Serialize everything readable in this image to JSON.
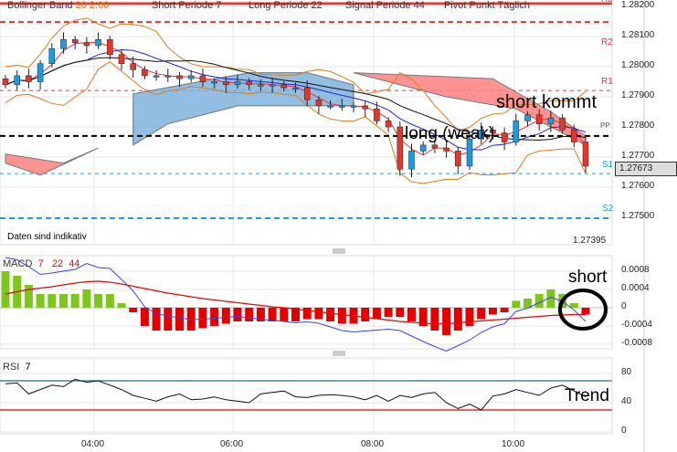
{
  "header": {
    "bb_label": "Bollinger Band",
    "bb_params": "20  2.00",
    "short": "Short Periode  7",
    "long": "Long Periode  22",
    "signal": "Signal Periode  44",
    "pivot": "Pivot Punkt  Täglich"
  },
  "disclaimer": "Daten sind indikativ",
  "low_value": "1.27395",
  "current_price": "1.27673",
  "pivot_labels": {
    "r3": "R3",
    "r2": "R2",
    "r1": "R1",
    "pp": "PP",
    "s1": "S1",
    "s2": "S2"
  },
  "annotations": {
    "long": "long (weak)",
    "short_kommt": "short kommt",
    "short": "short",
    "trend": "Trend"
  },
  "colors": {
    "up": "#1e9be0",
    "down": "#e8352b",
    "macd_pos": "#7cc61d",
    "macd_neg": "#e40000",
    "kumo_blue": "#7fb3dc",
    "kumo_red": "#ff8080"
  },
  "chart_data": [
    {
      "type": "candlestick",
      "title": "Price",
      "y_ticks": [
        "1.28200",
        "1.28100",
        "1.28000",
        "1.27900",
        "1.27800",
        "1.27700",
        "1.27600",
        "1.27500"
      ],
      "ylim": [
        1.2739,
        1.2821
      ],
      "pivots": {
        "R3": 1.2821,
        "R2": 1.28148,
        "R1": 1.27921,
        "PP": 1.2777,
        "S1": 1.27645,
        "S2": 1.27497
      },
      "closes": [
        1.2794,
        1.2797,
        1.2795,
        1.2801,
        1.2806,
        1.2809,
        1.2808,
        1.2807,
        1.2809,
        1.2804,
        1.2801,
        1.2799,
        1.2797,
        1.2797,
        1.2797,
        1.2796,
        1.2797,
        1.2795,
        1.2795,
        1.2794,
        1.2795,
        1.2794,
        1.2794,
        1.2794,
        1.2793,
        1.2793,
        1.2789,
        1.2787,
        1.2787,
        1.2787,
        1.2787,
        1.2786,
        1.2782,
        1.278,
        1.2766,
        1.2772,
        1.2774,
        1.2773,
        1.2772,
        1.2767,
        1.2776,
        1.2779,
        1.2778,
        1.2775,
        1.2782,
        1.2784,
        1.2781,
        1.2783,
        1.2779,
        1.2775,
        1.2767
      ],
      "kumo_blue": {
        "upper": [
          [
            11,
            1.2791
          ],
          [
            21,
            1.2798
          ],
          [
            26,
            1.2798
          ],
          [
            30,
            1.2794
          ]
        ],
        "lower": [
          [
            11,
            1.2774
          ],
          [
            14,
            1.2781
          ],
          [
            20,
            1.2787
          ],
          [
            30,
            1.2787
          ]
        ]
      },
      "kumo_red": {
        "upper": [
          [
            0,
            1.2771
          ],
          [
            5,
            1.2768
          ],
          [
            8,
            1.2773
          ]
        ],
        "lower": [
          [
            0,
            1.2768
          ],
          [
            3,
            1.2764
          ],
          [
            8,
            1.2773
          ]
        ]
      },
      "kumo_red2": {
        "upper": [
          [
            30,
            1.2798
          ],
          [
            42,
            1.2796
          ],
          [
            47,
            1.2785
          ],
          [
            50,
            1.2777
          ]
        ],
        "lower": [
          [
            30,
            1.2798
          ],
          [
            38,
            1.279
          ],
          [
            44,
            1.2786
          ],
          [
            50,
            1.2774
          ]
        ]
      }
    },
    {
      "type": "bar+line",
      "title": "MACD",
      "params": [
        "7",
        "22",
        "44"
      ],
      "y_ticks": [
        "0.0008",
        "0.0004",
        "0",
        "-0.0004",
        "-0.0008"
      ],
      "ylim": [
        -0.0009,
        0.0011
      ],
      "histogram": [
        8,
        7,
        5,
        3,
        3,
        3,
        3,
        4,
        3,
        3,
        1,
        -1,
        -4,
        -5,
        -5,
        -5,
        -5,
        -4.5,
        -4,
        -3.5,
        -3,
        -3,
        -3,
        -3,
        -3,
        -3,
        -2.5,
        -2.5,
        -3,
        -3.5,
        -3.5,
        -3,
        -2.5,
        -2,
        -2,
        -3,
        -4,
        -5,
        -6,
        -5,
        -4,
        -2.5,
        -1.5,
        -1,
        1.5,
        2,
        3,
        4,
        3,
        1,
        -1.5
      ],
      "signal": [
        3,
        3.5,
        4,
        4.3,
        4.6,
        5,
        5.4,
        5.7,
        5.8,
        5.6,
        5.2,
        4.7,
        4.2,
        3.7,
        3.2,
        2.8,
        2.4,
        2,
        1.7,
        1.4,
        1.1,
        0.8,
        0.5,
        0.2,
        0,
        -0.3,
        -0.6,
        -0.9,
        -1.2,
        -1.5,
        -1.8,
        -2.1,
        -2.4,
        -2.7,
        -3,
        -3.2,
        -3.4,
        -3.5,
        -3.5,
        -3.3,
        -3.1,
        -2.9,
        -2.7,
        -2.5,
        -2.3,
        -2.1,
        -1.9,
        -1.7,
        -1.6,
        -1.5,
        -1.5
      ],
      "unit": 0.0001
    },
    {
      "type": "line",
      "title": "RSI",
      "params": [
        "7"
      ],
      "y_ticks": [
        "80",
        "40",
        "0"
      ],
      "ylim": [
        0,
        100
      ],
      "levels": [
        70,
        30
      ],
      "values": [
        66,
        67,
        52,
        58,
        64,
        62,
        72,
        68,
        70,
        64,
        58,
        50,
        46,
        42,
        48,
        52,
        44,
        45,
        48,
        44,
        42,
        40,
        52,
        54,
        56,
        48,
        47,
        50,
        51,
        50,
        48,
        44,
        50,
        42,
        50,
        47,
        52,
        54,
        40,
        32,
        38,
        30,
        49,
        52,
        58,
        54,
        50,
        60,
        64,
        56,
        48
      ],
      "x_ticks": [
        "04:00",
        "06:00",
        "08:00",
        "10:00"
      ]
    }
  ]
}
